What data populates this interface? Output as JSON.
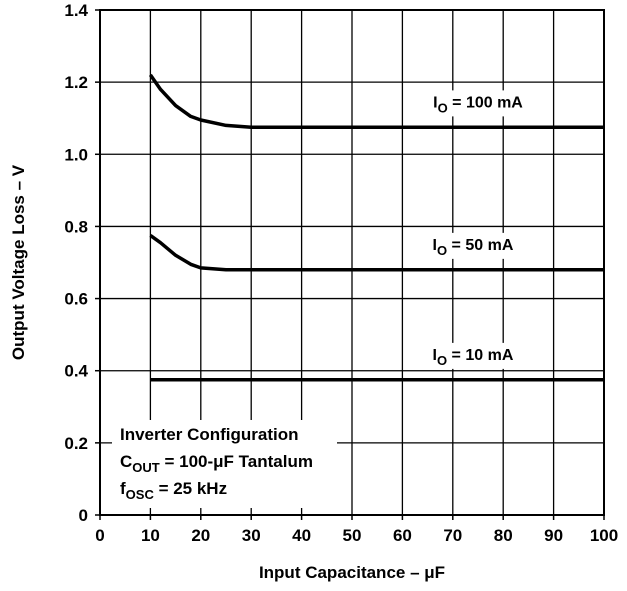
{
  "chart_data": {
    "type": "line",
    "title": "",
    "xlabel": "Input Capacitance – μF",
    "ylabel": "Output Voltage Loss – V",
    "xlim": [
      0,
      100
    ],
    "ylim": [
      0,
      1.4
    ],
    "x_ticks": [
      "0",
      "10",
      "20",
      "30",
      "40",
      "50",
      "60",
      "70",
      "80",
      "90",
      "100"
    ],
    "y_ticks": [
      "0",
      "0.2",
      "0.4",
      "0.6",
      "0.8",
      "1.0",
      "1.2",
      "1.4"
    ],
    "grid": true,
    "series": [
      {
        "label_main": "I",
        "label_sub": "O",
        "label_rest": " = 100 mA",
        "x": [
          10,
          12,
          15,
          18,
          20,
          25,
          30,
          35,
          40,
          100
        ],
        "y": [
          1.22,
          1.18,
          1.135,
          1.105,
          1.095,
          1.08,
          1.075,
          1.075,
          1.075,
          1.075
        ]
      },
      {
        "label_main": "I",
        "label_sub": "O",
        "label_rest": " = 50 mA",
        "x": [
          10,
          12,
          15,
          18,
          20,
          25,
          30,
          35,
          100
        ],
        "y": [
          0.775,
          0.755,
          0.72,
          0.695,
          0.685,
          0.68,
          0.68,
          0.68,
          0.68
        ]
      },
      {
        "label_main": "I",
        "label_sub": "O",
        "label_rest": " = 10 mA",
        "x": [
          10,
          100
        ],
        "y": [
          0.375,
          0.375
        ]
      }
    ],
    "annotation": [
      {
        "main": "Inverter Configuration",
        "sub": "",
        "rest": ""
      },
      {
        "main": "C",
        "sub": "OUT",
        "rest": " = 100-μF Tantalum"
      },
      {
        "main": "f",
        "sub": "OSC",
        "rest": " = 25 kHz"
      }
    ]
  }
}
